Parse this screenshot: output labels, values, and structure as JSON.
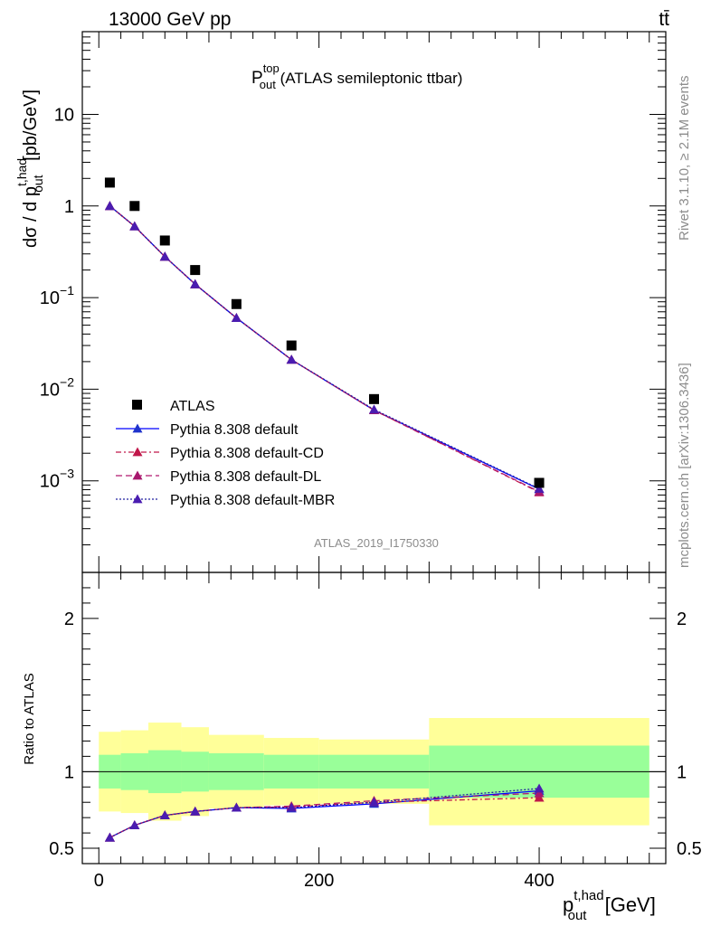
{
  "header": {
    "left": "13000 GeV pp",
    "right": "tt̄"
  },
  "side": {
    "rivet": "Rivet 3.1.10, ≥ 2.1M events",
    "mcplots": "mcplots.cern.ch [arXiv:1306.3436]"
  },
  "watermark": "ATLAS_2019_I1750330",
  "chart_data": {
    "type": "scatter",
    "title": {
      "main": "P",
      "sup": "top",
      "sub": "out",
      "rest": " (ATLAS semileptonic ttbar)"
    },
    "xlabel": {
      "main": "p",
      "sup": "t,had",
      "sub": "out",
      "unit": " [GeV]"
    },
    "ylabel": {
      "pre": "dσ / d p",
      "sup": "t,had",
      "sub": "out",
      "unit": " [pb/GeV]"
    },
    "ratio_ylabel": "Ratio to ATLAS",
    "xlim": [
      -15,
      515
    ],
    "ylim": [
      0.0001,
      80
    ],
    "yscale": "log",
    "ratio_ylim": [
      0.4,
      2.3
    ],
    "x_ticks": [
      "0",
      "200",
      "400"
    ],
    "y_ticks": [
      {
        "main": "10",
        "sup": "−3"
      },
      {
        "main": "10",
        "sup": "−2"
      },
      {
        "main": "10",
        "sup": "−1"
      },
      {
        "main": "1",
        "sup": ""
      },
      {
        "main": "10",
        "sup": ""
      }
    ],
    "ratio_ticks": [
      "0.5",
      "1",
      "2"
    ],
    "x": [
      10,
      32.5,
      60,
      87.5,
      125,
      175,
      250,
      400
    ],
    "bins": [
      [
        0,
        20
      ],
      [
        20,
        45
      ],
      [
        45,
        75
      ],
      [
        75,
        100
      ],
      [
        100,
        150
      ],
      [
        150,
        200
      ],
      [
        200,
        300
      ],
      [
        300,
        500
      ]
    ],
    "data": {
      "name": "ATLAS",
      "values": [
        1.8,
        1.0,
        0.42,
        0.2,
        0.085,
        0.03,
        0.0078,
        0.00095
      ],
      "band_inner": [
        0.11,
        0.12,
        0.14,
        0.13,
        0.12,
        0.11,
        0.11,
        0.17
      ],
      "band_outer": [
        0.26,
        0.27,
        0.32,
        0.29,
        0.24,
        0.22,
        0.21,
        0.35
      ]
    },
    "series": [
      {
        "name": "Pythia 8.308 default",
        "color": "#0000ff",
        "dash": "",
        "marker_color": "#1f33cc",
        "values": [
          1.0,
          0.6,
          0.28,
          0.14,
          0.06,
          0.021,
          0.0059,
          0.00081
        ],
        "ratio": [
          0.57,
          0.65,
          0.715,
          0.74,
          0.765,
          0.76,
          0.79,
          0.875
        ]
      },
      {
        "name": "Pythia 8.308 default-CD",
        "color": "#c0174a",
        "dash": "6,3,2,3",
        "marker_color": "#c0174a",
        "values": [
          1.0,
          0.6,
          0.28,
          0.14,
          0.06,
          0.021,
          0.0059,
          0.00075
        ],
        "ratio": [
          0.57,
          0.65,
          0.715,
          0.74,
          0.765,
          0.77,
          0.8,
          0.83
        ]
      },
      {
        "name": "Pythia 8.308 default-DL",
        "color": "#b0186e",
        "dash": "7,4",
        "marker_color": "#a8186e",
        "values": [
          1.0,
          0.6,
          0.28,
          0.14,
          0.06,
          0.021,
          0.0059,
          0.00076
        ],
        "ratio": [
          0.57,
          0.65,
          0.715,
          0.74,
          0.765,
          0.775,
          0.81,
          0.86
        ]
      },
      {
        "name": "Pythia 8.308 default-MBR",
        "color": "#2020a0",
        "dash": "2,2",
        "marker_color": "#4a1cb0",
        "values": [
          1.0,
          0.6,
          0.28,
          0.14,
          0.06,
          0.021,
          0.006,
          0.00082
        ],
        "ratio": [
          0.57,
          0.65,
          0.715,
          0.74,
          0.765,
          0.765,
          0.8,
          0.89
        ]
      }
    ],
    "legend_position": "bottom-left",
    "band_colors": {
      "inner": "#99ff99",
      "outer": "#ffff99"
    }
  }
}
